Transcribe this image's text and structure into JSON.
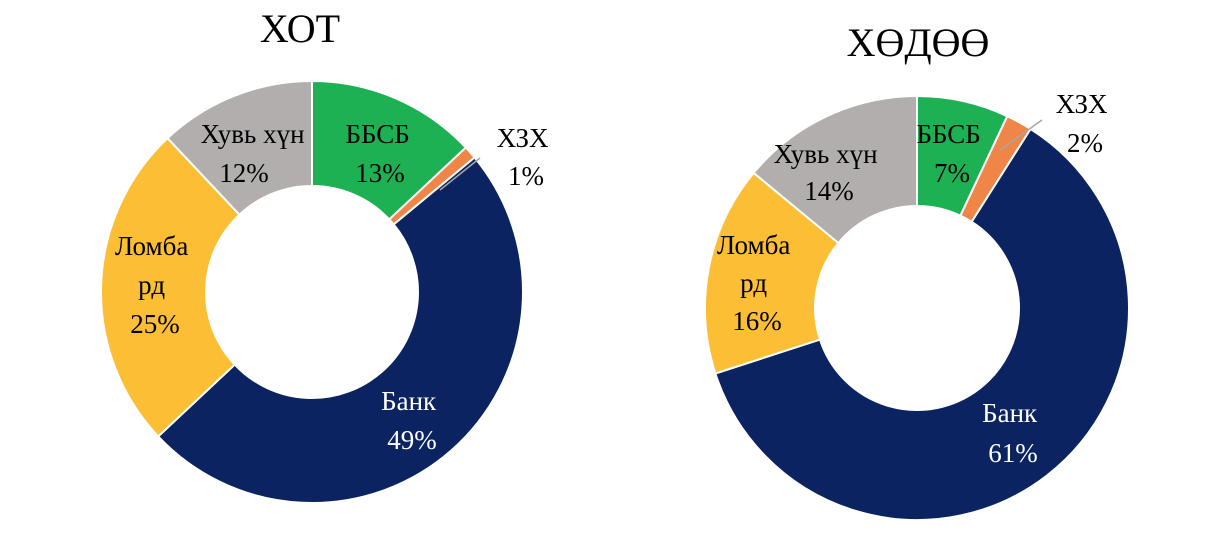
{
  "chart_data": [
    {
      "type": "pie",
      "title": "ХОТ",
      "slices": [
        {
          "label": "ББСБ",
          "value": 13,
          "pct_label": "13%",
          "color": "#1eb153"
        },
        {
          "label": "ХЗХ",
          "value": 1,
          "pct_label": "1%",
          "color": "#ef8546"
        },
        {
          "label": "Банк",
          "value": 49,
          "pct_label": "49%",
          "color": "#0b2360"
        },
        {
          "label": "Ломбард",
          "value": 25,
          "pct_label": "25%",
          "color": "#fbbe34"
        },
        {
          "label": "Хувь хүн",
          "value": 12,
          "pct_label": "12%",
          "color": "#b2aeae"
        }
      ]
    },
    {
      "type": "pie",
      "title": "ХӨДӨӨ",
      "slices": [
        {
          "label": "ББСБ",
          "value": 7,
          "pct_label": "7%",
          "color": "#1eb153"
        },
        {
          "label": "ХЗХ",
          "value": 2,
          "pct_label": "2%",
          "color": "#ef8546"
        },
        {
          "label": "Банк",
          "value": 61,
          "pct_label": "61%",
          "color": "#0b2360"
        },
        {
          "label": "Ломбард",
          "value": 16,
          "pct_label": "16%",
          "color": "#fbbe34"
        },
        {
          "label": "Хувь хүн",
          "value": 14,
          "pct_label": "14%",
          "color": "#b2aeae"
        }
      ]
    }
  ]
}
